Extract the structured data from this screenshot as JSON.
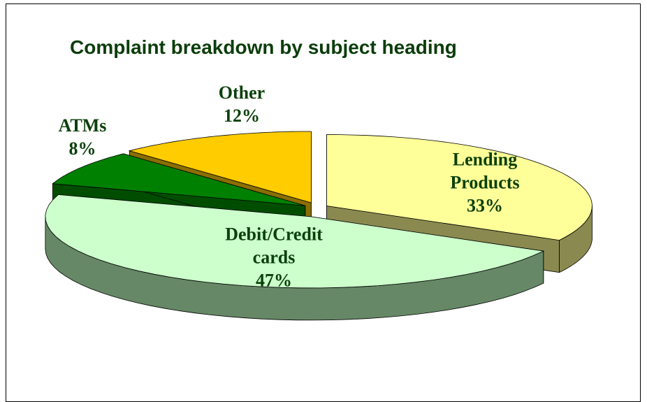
{
  "chart_data": {
    "type": "pie3d",
    "title": "Complaint breakdown by subject heading",
    "categories": [
      "Lending Products",
      "Debit/Credit cards",
      "ATMs",
      "Other"
    ],
    "values": [
      33,
      47,
      8,
      12
    ],
    "value_labels": [
      "33%",
      "47%",
      "8%",
      "12%"
    ],
    "colors": [
      "#ffff99",
      "#ccffcc",
      "#008000",
      "#ffcc00"
    ],
    "side_colors": [
      "#8a8a50",
      "#668866",
      "#004d00",
      "#8a6e00"
    ]
  }
}
